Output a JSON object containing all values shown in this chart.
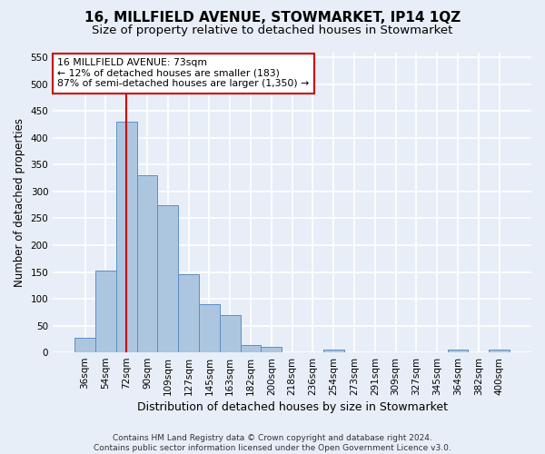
{
  "title": "16, MILLFIELD AVENUE, STOWMARKET, IP14 1QZ",
  "subtitle": "Size of property relative to detached houses in Stowmarket",
  "xlabel": "Distribution of detached houses by size in Stowmarket",
  "ylabel": "Number of detached properties",
  "footer_line1": "Contains HM Land Registry data © Crown copyright and database right 2024.",
  "footer_line2": "Contains public sector information licensed under the Open Government Licence v3.0.",
  "categories": [
    "36sqm",
    "54sqm",
    "72sqm",
    "90sqm",
    "109sqm",
    "127sqm",
    "145sqm",
    "163sqm",
    "182sqm",
    "200sqm",
    "218sqm",
    "236sqm",
    "254sqm",
    "273sqm",
    "291sqm",
    "309sqm",
    "327sqm",
    "345sqm",
    "364sqm",
    "382sqm",
    "400sqm"
  ],
  "values": [
    28,
    153,
    430,
    330,
    275,
    145,
    90,
    70,
    13,
    11,
    0,
    0,
    5,
    0,
    0,
    0,
    0,
    0,
    5,
    0,
    5
  ],
  "bar_color": "#adc6e0",
  "bar_edge_color": "#5b8ec4",
  "vline_x": 2,
  "vline_color": "#cc0000",
  "annotation_line1": "16 MILLFIELD AVENUE: 73sqm",
  "annotation_line2": "← 12% of detached houses are smaller (183)",
  "annotation_line3": "87% of semi-detached houses are larger (1,350) →",
  "annotation_box_color": "#ffffff",
  "annotation_box_edge": "#cc0000",
  "ylim": [
    0,
    560
  ],
  "yticks": [
    0,
    50,
    100,
    150,
    200,
    250,
    300,
    350,
    400,
    450,
    500,
    550
  ],
  "background_color": "#e8eef7",
  "grid_color": "#ffffff",
  "title_fontsize": 11,
  "subtitle_fontsize": 9.5,
  "ylabel_fontsize": 8.5,
  "xlabel_fontsize": 9,
  "tick_fontsize": 7.5,
  "footer_fontsize": 6.5
}
